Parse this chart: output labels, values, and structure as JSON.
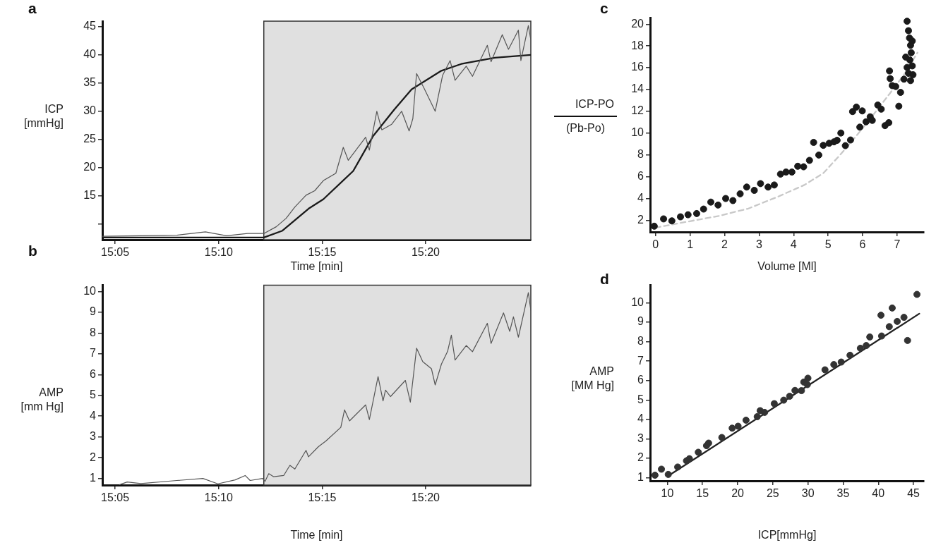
{
  "chart_data": [
    {
      "type": "line",
      "title": "a",
      "xlabel": "Time [min]",
      "ylabel": "ICP [mmHg]",
      "xlim": [
        15.073,
        15.418
      ],
      "ylim": [
        7.2,
        46
      ],
      "xticks": [
        {
          "value": 15.0833,
          "label": "15:05"
        },
        {
          "value": 15.1667,
          "label": "15:10"
        },
        {
          "value": 15.25,
          "label": "15:15"
        },
        {
          "value": 15.3333,
          "label": "15:20"
        }
      ],
      "yticks": [
        {
          "value": 10,
          "label": null
        },
        15,
        20,
        25,
        30,
        35,
        40,
        45
      ],
      "bands": [
        {
          "axis": "x",
          "from": 15.203,
          "to": 15.418,
          "color": "#e0e0e0"
        }
      ],
      "series": [
        {
          "color": "#555555",
          "x": [
            15.073,
            15.133,
            15.156,
            15.173,
            15.19,
            15.203,
            15.213,
            15.221,
            15.228,
            15.237,
            15.244,
            15.251,
            15.261,
            15.267,
            15.271,
            15.285,
            15.288,
            15.294,
            15.298,
            15.306,
            15.314,
            15.32,
            15.323,
            15.326,
            15.332,
            15.341,
            15.347,
            15.353,
            15.357,
            15.366,
            15.371,
            15.383,
            15.386,
            15.395,
            15.4,
            15.408,
            15.41,
            15.416,
            15.418
          ],
          "values": [
            7.8,
            8.0,
            8.6,
            7.9,
            8.3,
            8.3,
            9.5,
            11,
            13,
            15.1,
            15.9,
            17.7,
            19,
            23.6,
            21.3,
            25.4,
            23.1,
            30,
            26.7,
            27.7,
            30,
            26.5,
            28.7,
            36.7,
            34.1,
            30,
            36.4,
            39,
            35.5,
            38,
            36.2,
            41.7,
            38.8,
            43.6,
            41,
            44.4,
            39,
            45.2,
            42.7
          ]
        },
        {
          "color": "#1a1a1a",
          "x": [
            15.073,
            15.203,
            15.218,
            15.239,
            15.251,
            15.275,
            15.291,
            15.308,
            15.322,
            15.346,
            15.362,
            15.389,
            15.418
          ],
          "values": [
            7.6,
            7.6,
            8.8,
            12.7,
            14.4,
            19.4,
            25.6,
            30.3,
            33.9,
            37.2,
            38.4,
            39.5,
            40
          ]
        }
      ]
    },
    {
      "type": "line",
      "title": "b",
      "xlabel": "Time [min]",
      "ylabel": "AMP [mm Hg]",
      "xlim": [
        15.073,
        15.418
      ],
      "ylim": [
        0.68,
        10.3
      ],
      "xticks": [
        {
          "value": 15.0833,
          "label": "15:05"
        },
        {
          "value": 15.1667,
          "label": "15:10"
        },
        {
          "value": 15.25,
          "label": "15:15"
        },
        {
          "value": 15.3333,
          "label": "15:20"
        }
      ],
      "yticks": [
        1,
        2,
        3,
        4,
        5,
        6,
        7,
        8,
        9,
        10
      ],
      "bands": [
        {
          "axis": "x",
          "from": 15.203,
          "to": 15.418,
          "color": "#e0e0e0"
        }
      ],
      "series": [
        {
          "color": "#555555",
          "x": [
            15.087,
            15.093,
            15.104,
            15.133,
            15.154,
            15.166,
            15.18,
            15.188,
            15.192,
            15.202,
            15.204,
            15.207,
            15.211,
            15.219,
            15.224,
            15.228,
            15.237,
            15.239,
            15.247,
            15.253,
            15.265,
            15.268,
            15.272,
            15.285,
            15.288,
            15.295,
            15.299,
            15.301,
            15.305,
            15.317,
            15.321,
            15.326,
            15.331,
            15.338,
            15.341,
            15.346,
            15.351,
            15.354,
            15.357,
            15.366,
            15.371,
            15.383,
            15.386,
            15.396,
            15.401,
            15.404,
            15.408,
            15.416,
            15.418
          ],
          "values": [
            0.7,
            0.83,
            0.75,
            0.9,
            1.0,
            0.74,
            0.93,
            1.14,
            0.9,
            1.0,
            0.86,
            1.23,
            1.08,
            1.14,
            1.63,
            1.45,
            2.35,
            2.04,
            2.53,
            2.8,
            3.46,
            4.3,
            3.77,
            4.54,
            3.83,
            5.9,
            4.73,
            5.25,
            4.94,
            5.72,
            4.67,
            7.27,
            6.62,
            6.28,
            5.5,
            6.5,
            7.12,
            7.9,
            6.7,
            7.4,
            7.1,
            8.47,
            7.5,
            8.97,
            8.08,
            8.78,
            7.8,
            9.94,
            9.1
          ]
        }
      ]
    },
    {
      "type": "scatter",
      "title": "c",
      "xlabel": "Volume [Ml]",
      "ylabel": "ICP-PO (Pb-Po)",
      "xlim": [
        -0.16,
        7.78
      ],
      "ylim": [
        0.93,
        20.6
      ],
      "xticks": [
        0,
        1,
        2,
        3,
        4,
        5,
        6,
        7
      ],
      "yticks": [
        2,
        4,
        6,
        8,
        10,
        12,
        14,
        16,
        18,
        20
      ],
      "series": [
        {
          "color": "#1a1a1a",
          "marker": "circle",
          "x": [
            -0.04,
            0.23,
            0.47,
            0.72,
            0.94,
            1.19,
            1.39,
            1.6,
            1.81,
            2.03,
            2.24,
            2.45,
            2.64,
            2.86,
            3.04,
            3.26,
            3.44,
            3.62,
            3.78,
            3.95,
            4.12,
            4.29,
            4.46,
            4.58,
            4.73,
            4.86,
            5.03,
            5.17,
            5.26,
            5.37,
            5.5,
            5.65,
            5.71,
            5.82,
            5.99,
            5.92,
            6.1,
            6.22,
            6.28,
            6.44,
            6.54,
            6.65,
            6.76,
            6.78,
            6.8,
            6.86,
            6.96,
            7.05,
            7.1,
            7.2,
            7.29,
            7.33,
            7.36,
            7.39,
            7.41,
            7.37,
            7.29,
            7.44,
            7.33,
            7.46,
            7.39,
            7.25,
            7.44
          ],
          "values": [
            1.46,
            2.13,
            1.95,
            2.32,
            2.51,
            2.62,
            3.03,
            3.67,
            3.4,
            4.0,
            3.81,
            4.43,
            5.05,
            4.75,
            5.37,
            5.05,
            5.24,
            6.24,
            6.43,
            6.43,
            6.96,
            6.91,
            7.5,
            9.15,
            7.99,
            8.88,
            9.07,
            9.2,
            9.34,
            10.01,
            8.85,
            9.37,
            11.98,
            12.39,
            12.04,
            10.55,
            11.04,
            11.5,
            11.17,
            12.58,
            12.2,
            10.69,
            10.96,
            15.71,
            15.0,
            14.36,
            14.28,
            12.47,
            13.74,
            14.95,
            20.27,
            19.4,
            18.73,
            18.06,
            17.38,
            16.71,
            16.03,
            16.17,
            15.49,
            15.36,
            14.82,
            16.98,
            18.46
          ]
        },
        {
          "type": "line",
          "color": "#c8c8c8",
          "line_style": "dashed",
          "x": [
            0,
            0.81,
            1.83,
            2.69,
            3.54,
            4.31,
            4.86,
            5.33,
            5.84,
            6.35,
            6.78,
            7.2,
            7.59
          ],
          "values": [
            1.33,
            1.81,
            2.4,
            3.08,
            4.16,
            5.24,
            6.32,
            7.94,
            9.83,
            11.85,
            13.6,
            15.36,
            17.38
          ]
        }
      ]
    },
    {
      "type": "scatter",
      "title": "d",
      "xlabel": "ICP[mmHg]",
      "ylabel": "AMP [MM Hg]",
      "xlim": [
        7.55,
        46.5
      ],
      "ylim": [
        0.84,
        10.9
      ],
      "xticks": [
        10,
        15,
        20,
        25,
        30,
        35,
        40,
        45
      ],
      "yticks": [
        1,
        2,
        3,
        4,
        5,
        6,
        7,
        8,
        9,
        10
      ],
      "series": [
        {
          "color": "#333333",
          "marker": "circle",
          "x": [
            8.24,
            9.16,
            10.13,
            11.47,
            12.72,
            13.14,
            14.4,
            15.57,
            15.87,
            17.75,
            19.22,
            20.06,
            21.19,
            22.78,
            23.2,
            23.83,
            25.21,
            26.55,
            27.39,
            28.15,
            29.07,
            29.4,
            29.99,
            29.91,
            32.42,
            33.68,
            34.73,
            35.98,
            37.45,
            38.29,
            38.79,
            40.38,
            40.47,
            41.56,
            41.98,
            42.69,
            43.65,
            44.16,
            45.5
          ],
          "values": [
            1.13,
            1.44,
            1.17,
            1.55,
            1.87,
            1.98,
            2.31,
            2.65,
            2.78,
            3.07,
            3.55,
            3.65,
            3.96,
            4.14,
            4.45,
            4.36,
            4.81,
            4.99,
            5.19,
            5.49,
            5.48,
            5.92,
            6.12,
            5.79,
            6.55,
            6.82,
            6.95,
            7.3,
            7.66,
            7.8,
            8.24,
            9.36,
            8.29,
            8.77,
            9.73,
            9.04,
            9.25,
            8.06,
            10.43
          ]
        },
        {
          "type": "line",
          "color": "#222222",
          "x": [
            10.2,
            45.83
          ],
          "values": [
            1.11,
            9.44
          ]
        }
      ]
    }
  ]
}
